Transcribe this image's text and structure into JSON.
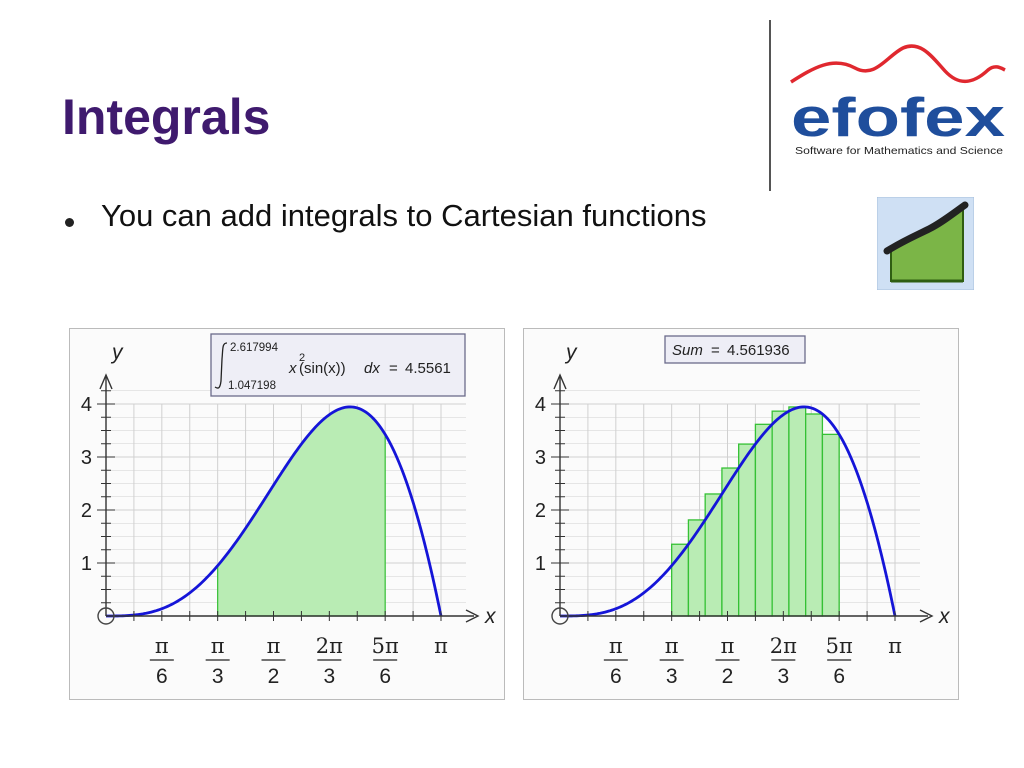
{
  "slide": {
    "title": "Integrals",
    "bullets": [
      {
        "text": "You can add integrals to Cartesian functions"
      }
    ]
  },
  "logo": {
    "brand": "efofex",
    "tagline": "Software for Mathematics and Science",
    "wave_color": "#e0282f",
    "text_color": "#1f4e9c"
  },
  "tool_icon": {
    "icon": "integral-tool-icon"
  },
  "colors": {
    "curve": "#1515d8",
    "fill": "#b9ecb4",
    "fill_edge": "#35c135",
    "grid": "#d0d0d0",
    "label_box": "#eeeef6"
  },
  "chart_data": [
    {
      "type": "area",
      "function": "x^2 sin(x)",
      "x_axis_label": "x",
      "y_axis_label": "y",
      "x_ticks": [
        {
          "num": "π",
          "den": "6"
        },
        {
          "num": "π",
          "den": "3"
        },
        {
          "num": "π",
          "den": "2"
        },
        {
          "num": "2π",
          "den": "3"
        },
        {
          "num": "5π",
          "den": "6"
        },
        {
          "num": "π",
          "den": ""
        }
      ],
      "y_ticks": [
        "1",
        "2",
        "3",
        "4"
      ],
      "xlim": [
        0,
        3.1416
      ],
      "ylim": [
        0,
        4
      ],
      "integral": {
        "lower": "1.047198",
        "upper": "2.617994",
        "integrand": "x",
        "exponent": "2",
        "integrand_rest": "(sin(x))",
        "dx": "dx",
        "equals": "=",
        "result": "4.5561"
      }
    },
    {
      "type": "bar",
      "function": "x^2 sin(x)",
      "x_axis_label": "x",
      "y_axis_label": "y",
      "x_ticks": [
        {
          "num": "π",
          "den": "6"
        },
        {
          "num": "π",
          "den": "3"
        },
        {
          "num": "π",
          "den": "2"
        },
        {
          "num": "2π",
          "den": "3"
        },
        {
          "num": "5π",
          "den": "6"
        },
        {
          "num": "π",
          "den": ""
        }
      ],
      "y_ticks": [
        "1",
        "2",
        "3",
        "4"
      ],
      "xlim": [
        0,
        3.1416
      ],
      "ylim": [
        0,
        4
      ],
      "sum": {
        "label": "Sum",
        "equals": "=",
        "value": "4.561936",
        "lower": 1.047198,
        "upper": 2.617994,
        "rectangles": 10
      }
    }
  ]
}
